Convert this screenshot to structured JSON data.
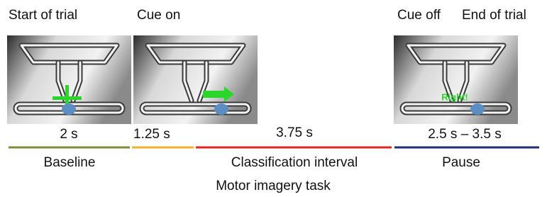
{
  "events": [
    "Start of trial",
    "Cue on",
    "Cue off",
    "End of trial"
  ],
  "durations": [
    "2 s",
    "1.25 s",
    "3.75 s",
    "2.5 s – 3.5 s"
  ],
  "phases": [
    "Baseline",
    "Classification interval",
    "Pause"
  ],
  "caption": "Motor imagery task",
  "feedback": "Right!"
}
